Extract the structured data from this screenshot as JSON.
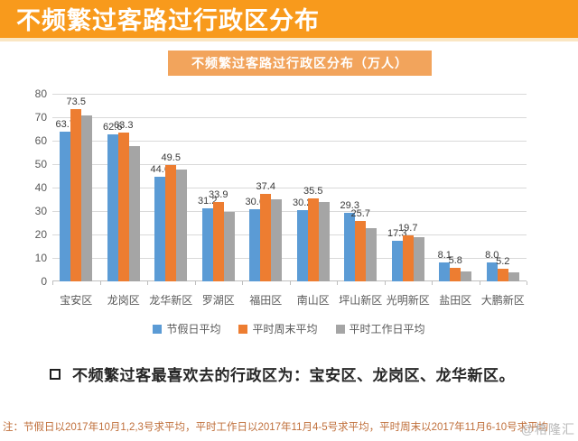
{
  "header": {
    "title": "不频繁过客路过行政区分布"
  },
  "chart_data": {
    "type": "bar",
    "title": "不频繁过客路过行政区分布（万人）",
    "categories": [
      "宝安区",
      "龙岗区",
      "龙华新区",
      "罗湖区",
      "福田区",
      "南山区",
      "坪山新区",
      "光明新区",
      "盐田区",
      "大鹏新区"
    ],
    "series": [
      {
        "name": "节假日平均",
        "color": "#5B9BD5",
        "labels_visible": true,
        "values": [
          63.7,
          62.6,
          44.6,
          31.2,
          30.6,
          30.2,
          29.3,
          17.3,
          8.1,
          8.0
        ]
      },
      {
        "name": "平时周末平均",
        "color": "#ED7D31",
        "labels_visible": true,
        "values": [
          73.5,
          63.3,
          49.5,
          33.9,
          37.4,
          35.5,
          25.7,
          19.7,
          5.8,
          5.2
        ]
      },
      {
        "name": "平时工作日平均",
        "color": "#A5A5A5",
        "labels_visible": false,
        "values": [
          70.9,
          57.7,
          47.6,
          29.5,
          35.0,
          34.0,
          22.6,
          18.9,
          4.3,
          3.9
        ]
      }
    ],
    "xlabel": "",
    "ylabel": "",
    "ylim": [
      0,
      80
    ],
    "ytick_step": 10,
    "grid": true,
    "legend_position": "bottom"
  },
  "insight": {
    "text": "不频繁过客最喜欢去的行政区为：宝安区、龙岗区、龙华新区。"
  },
  "footnote": {
    "text": "注：节假日以2017年10月1,2,3号求平均，平时工作日以2017年11月4-5号求平均，平时周末以2017年11月6-10号求平均"
  },
  "watermark": {
    "text": "@格隆汇"
  },
  "colors": {
    "banner_bg": "#F89A1C",
    "badge_bg": "#F2A45C",
    "footnote_text": "#C0703C",
    "gridline": "#D9D9D9",
    "axis_text": "#595959"
  }
}
